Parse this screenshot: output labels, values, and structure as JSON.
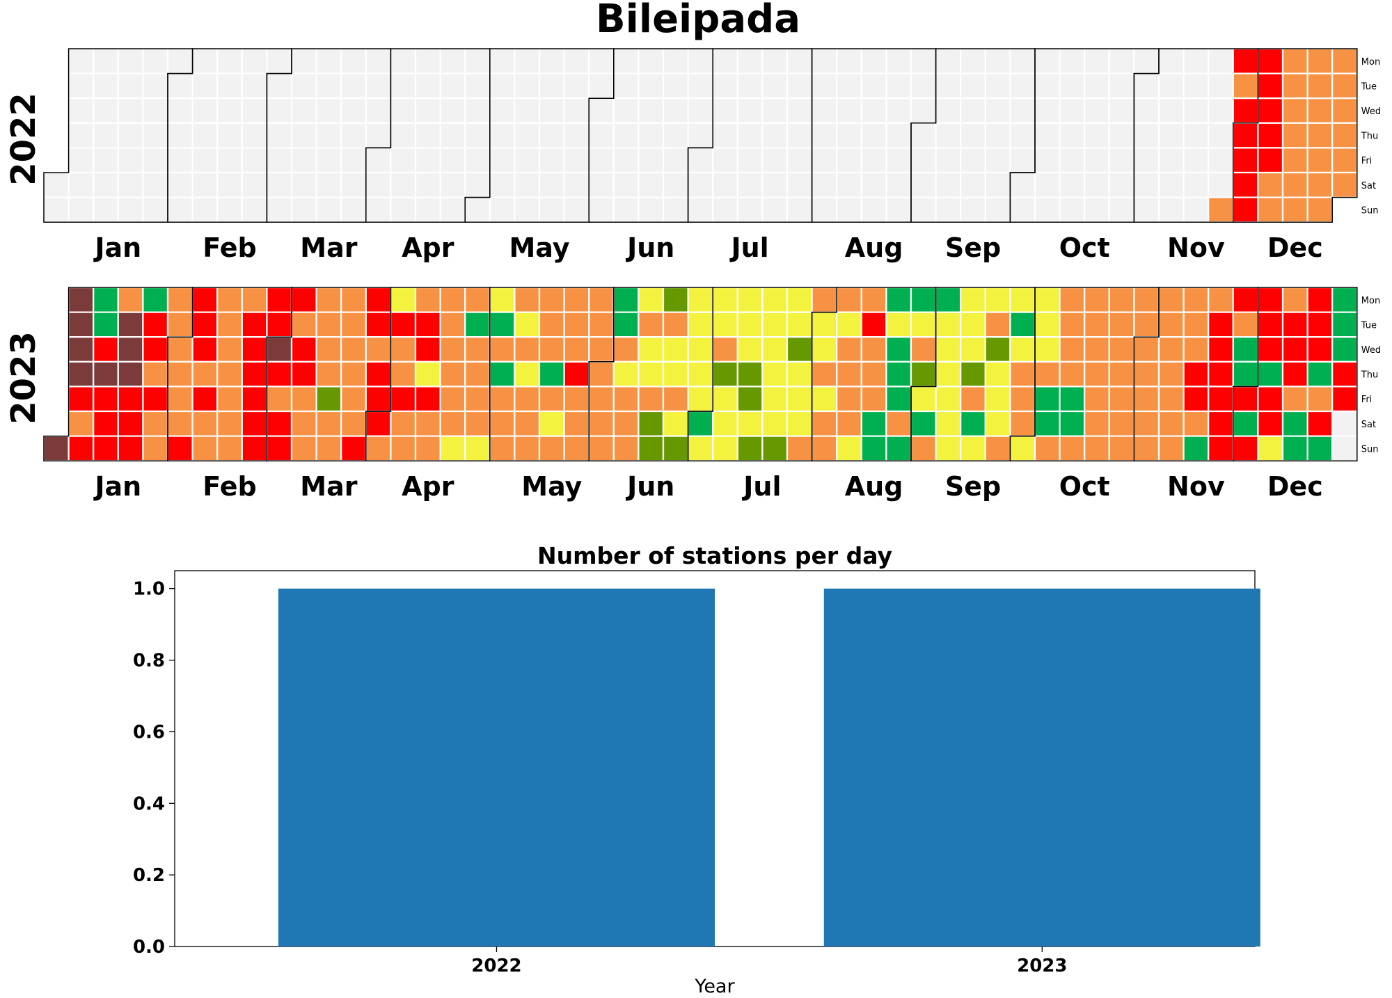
{
  "title": "Bileipada",
  "weekday_labels": [
    "Mon",
    "Tue",
    "Wed",
    "Thu",
    "Fri",
    "Sat",
    "Sun"
  ],
  "month_labels": [
    "Jan",
    "Feb",
    "Mar",
    "Apr",
    "May",
    "Jun",
    "Jul",
    "Aug",
    "Sep",
    "Oct",
    "Nov",
    "Dec"
  ],
  "colors": {
    "no_data": "#f2f2f2",
    "dark_green": "#669900",
    "green": "#00b050",
    "yellow": "#f2f23f",
    "orange": "#f79244",
    "red": "#ff0000",
    "maroon": "#7b3b3b",
    "bar": "#1f77b4"
  },
  "chart_data": [
    {
      "type": "heatmap",
      "title": "Bileipada",
      "subtype": "calendar",
      "legend_code": {
        "G": "dark_green",
        "S": "green",
        "Y": "yellow",
        "O": "orange",
        "R": "red",
        "M": "maroon"
      },
      "years": [
        {
          "year": "2022",
          "data_start": "2022-11-27",
          "days": "ORORRRRRRRRRROOOOOOOOOOOOOOOOOOOOOOORO"
        },
        {
          "year": "2023",
          "data_start": "2023-01-01",
          "days": "MMMMMRORSSRMRRROMMMRRRSRROROOOOOOOORRRROROOOOOOOOOORRRRRRRRMRORRRORROOOOOOOGOOOOOOOORRRORRROYROOROOORRYROOOOOOOOYOSOOOOYYSOSOOOOYOYOOOOOOSOYOOOOROOOOOOOOOOSSOYOOOYOYYOGGGOYYOYGYYYYYSYYYOGYYYYYYGGYGYYYYYYGYYGYYYOOYYOYOOOYOOOOYOROOOSSSYSSSOSSYOGYSOSYYYYYYYYYGOSYYOGYYYOYSYOOOYYYYOSSOOOOOSSOOOOOOOOOOOOOOOOOOOOOOOOOOOOOOOORROSORRRRRRROSSRSRRRRSRRYORRROSSRRRSORSSSSRR"
        }
      ]
    },
    {
      "type": "bar",
      "title": "Number of stations per day",
      "categories": [
        "2022",
        "2023"
      ],
      "values": [
        1,
        1
      ],
      "xlabel": "Year",
      "ylabel": "",
      "ylim": [
        0,
        1.05
      ],
      "yticks": [
        "0.0",
        "0.2",
        "0.4",
        "0.6",
        "0.8",
        "1.0"
      ]
    }
  ]
}
